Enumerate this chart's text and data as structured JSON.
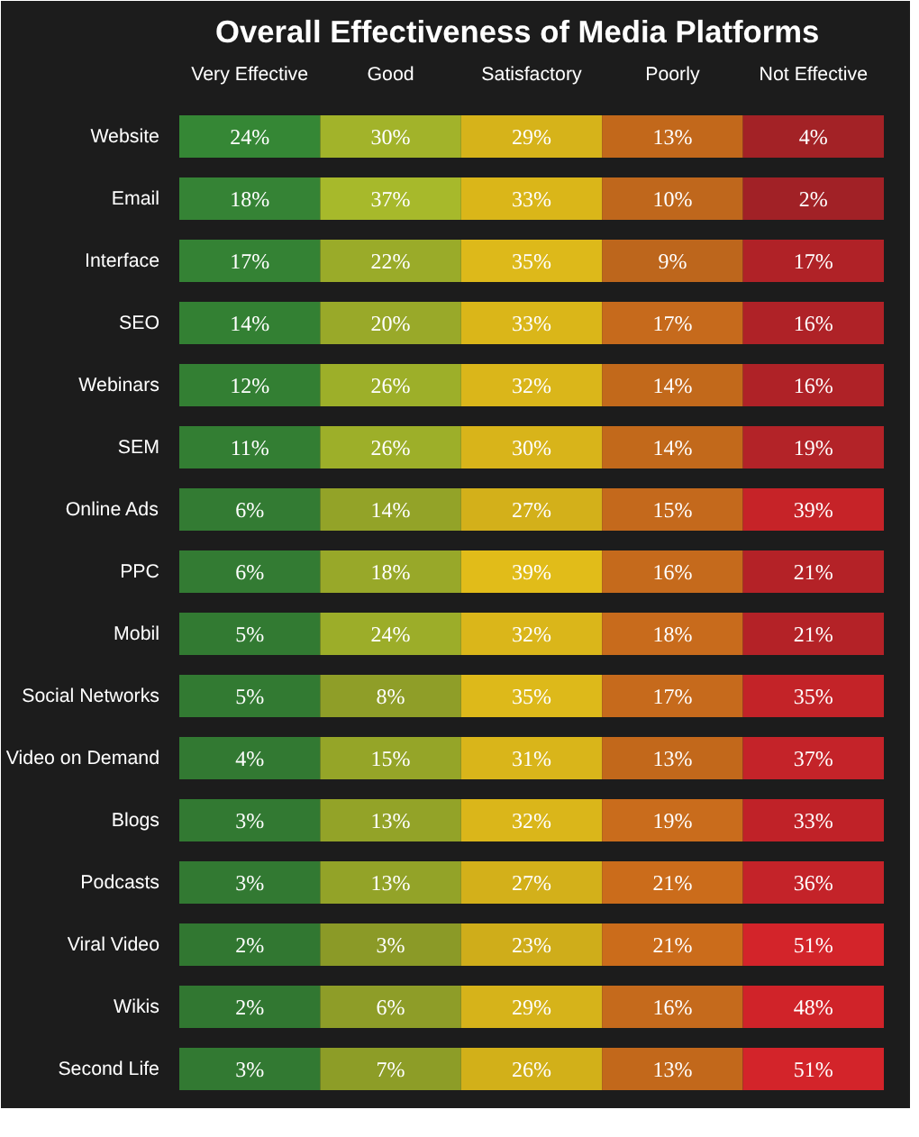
{
  "chart_data": {
    "type": "heatmap",
    "title": "Overall Effectiveness of Media Platforms",
    "categories": [
      "Very Effective",
      "Good",
      "Satisfactory",
      "Poorly",
      "Not Effective"
    ],
    "y_categories": [
      "Website",
      "Email",
      "Interface",
      "SEO",
      "Webinars",
      "SEM",
      "Online Ads",
      "PPC",
      "Mobil",
      "Social Networks",
      "Video on Demand",
      "Blogs",
      "Podcasts",
      "Viral Video",
      "Wikis",
      "Second Life"
    ],
    "cells": [
      [
        24,
        30,
        29,
        13,
        4
      ],
      [
        18,
        37,
        33,
        10,
        2
      ],
      [
        17,
        22,
        35,
        9,
        17
      ],
      [
        14,
        20,
        33,
        17,
        16
      ],
      [
        12,
        26,
        32,
        14,
        16
      ],
      [
        11,
        26,
        30,
        14,
        19
      ],
      [
        6,
        14,
        27,
        15,
        39
      ],
      [
        6,
        18,
        39,
        16,
        21
      ],
      [
        5,
        24,
        32,
        18,
        21
      ],
      [
        5,
        8,
        35,
        17,
        35
      ],
      [
        4,
        15,
        31,
        13,
        37
      ],
      [
        3,
        13,
        32,
        19,
        33
      ],
      [
        3,
        13,
        27,
        21,
        36
      ],
      [
        2,
        3,
        23,
        21,
        51
      ],
      [
        2,
        6,
        29,
        16,
        48
      ],
      [
        3,
        7,
        26,
        13,
        51
      ]
    ],
    "cell_labels": [
      [
        "24%",
        "30%",
        "29%",
        "13%",
        "4%"
      ],
      [
        "18%",
        "37%",
        "33%",
        "10%",
        "2%"
      ],
      [
        "17%",
        "22%",
        "35%",
        "9%",
        "17%"
      ],
      [
        "14%",
        "20%",
        "33%",
        "17%",
        "16%"
      ],
      [
        "12%",
        "26%",
        "32%",
        "14%",
        "16%"
      ],
      [
        "11%",
        "26%",
        "30%",
        "14%",
        "19%"
      ],
      [
        "6%",
        "14%",
        "27%",
        "15%",
        "39%"
      ],
      [
        "6%",
        "18%",
        "39%",
        "16%",
        "21%"
      ],
      [
        "5%",
        "24%",
        "32%",
        "18%",
        "21%"
      ],
      [
        "5%",
        "8%",
        "35%",
        "17%",
        "35%"
      ],
      [
        "4%",
        "15%",
        "31%",
        "13%",
        "37%"
      ],
      [
        "3%",
        "13%",
        "32%",
        "19%",
        "33%"
      ],
      [
        "3%",
        "13%",
        "27%",
        "21%",
        "36%"
      ],
      [
        "2%",
        "3%",
        "23%",
        "21%",
        "51%"
      ],
      [
        "2%",
        "6%",
        "29%",
        "16%",
        "48%"
      ],
      [
        "3%",
        "7%",
        "26%",
        "13%",
        "51%"
      ]
    ]
  }
}
